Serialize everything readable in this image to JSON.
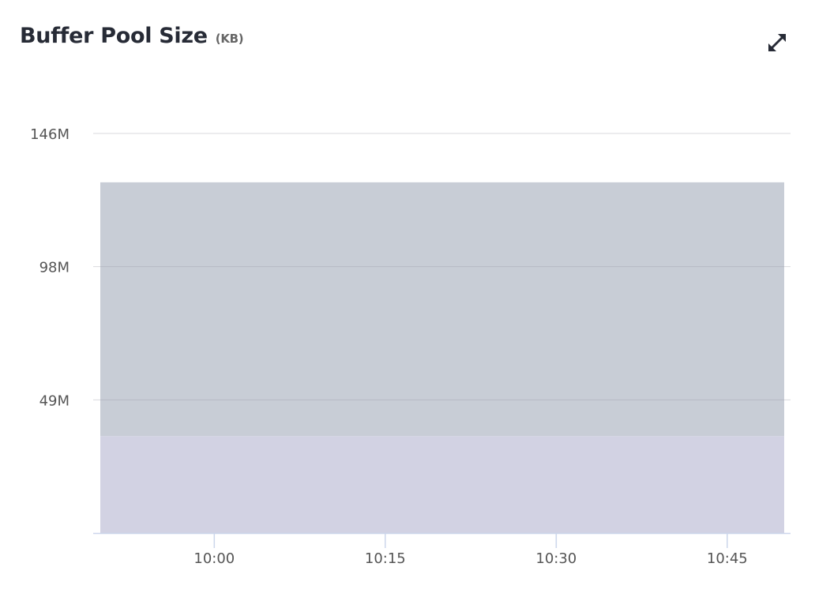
{
  "header": {
    "title": "Buffer Pool Size",
    "unit": "(KB)",
    "expand_icon": "expand-arrows-icon"
  },
  "colors": {
    "title": "#272b36",
    "series_top": "#c8cdd6",
    "series_bottom": "#d2d2e3",
    "grid": "#e6e6e6",
    "axis": "#ccd6eb"
  },
  "chart_data": {
    "type": "area",
    "stacked": true,
    "x_start": "09:50",
    "x_end": "10:50",
    "x_ticks": [
      "10:00",
      "10:15",
      "10:30",
      "10:45"
    ],
    "y_ticks": [
      "49M",
      "98M",
      "146M"
    ],
    "y_tick_values": [
      48.8,
      97.6,
      146.4
    ],
    "ylim": [
      0,
      146.4
    ],
    "y_unit": "M KB",
    "grid": true,
    "legend": "none",
    "series": [
      {
        "values": [
          35.5,
          35.5
        ]
      },
      {
        "values": [
          93.0,
          93.0
        ]
      }
    ]
  }
}
